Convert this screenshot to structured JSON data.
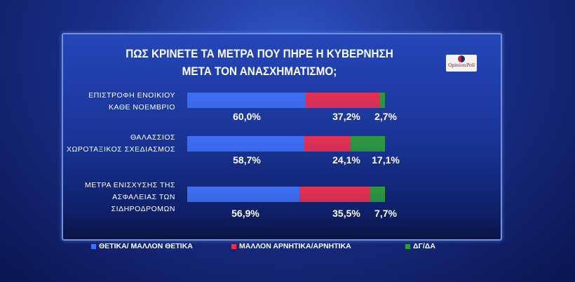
{
  "chart_data": {
    "type": "bar",
    "stacked": true,
    "orientation": "horizontal",
    "title": "ΠΩΣ ΚΡΙΝΕΤΕ ΤΑ ΜΕΤΡΑ ΠΟΥ ΠΗΡΕ Η ΚΥΒΕΡΝΗΣΗ ΜΕΤΑ ΤΟΝ ΑΝΑΣΧΗΜΑΤΙΣΜΟ;",
    "title_lines": [
      "ΠΩΣ ΚΡΙΝΕΤΕ ΤΑ ΜΕΤΡΑ ΠΟΥ ΠΗΡΕ Η ΚΥΒΕΡΝΗΣΗ",
      "ΜΕΤΑ ΤΟΝ ΑΝΑΣΧΗΜΑΤΙΣΜΟ;"
    ],
    "categories": [
      [
        "ΕΠΙΣΤΡΟΦΗ ΕΝΟΙΚΙΟΥ",
        "ΚΑΘΕ ΝΟΕΜΒΡΙΟ"
      ],
      [
        "ΘΑΛΑΣΣΙΟΣ",
        "ΧΩΡΟΤΑΞΙΚΟΣ ΣΧΕΔΙΑΣΜΟΣ"
      ],
      [
        "ΜΕΤΡΑ ΕΝΙΣΧΥΣΗΣ ΤΗΣ",
        "ΑΣΦΑΛΕΙΑΣ ΤΩΝ",
        "ΣΙΔΗΡΟΔΡΟΜΩΝ"
      ]
    ],
    "series": [
      {
        "name": "ΘΕΤΙΚΑ/ ΜΑΛΛΟΝ ΘΕΤΙΚΑ",
        "color": "#3f6ff5",
        "values": [
          60.0,
          58.7,
          56.9
        ],
        "labels": [
          "60,0%",
          "58,7%",
          "56,9%"
        ]
      },
      {
        "name": "ΜΑΛΛΟΝ ΑΡΝΗΤΙΚΑ/ΑΡΝΗΤΙΚΑ",
        "color": "#e83050",
        "values": [
          37.2,
          24.1,
          35.5
        ],
        "labels": [
          "37,2%",
          "24,1%",
          "35,5%"
        ]
      },
      {
        "name": "ΔΓ/ΔΑ",
        "color": "#2e9a3e",
        "values": [
          2.7,
          17.1,
          7.7
        ],
        "labels": [
          "2,7%",
          "17,1%",
          "7,7%"
        ]
      }
    ],
    "xlim": [
      0,
      100
    ],
    "legend": "bottom"
  },
  "logo_text": "OpinionPoll"
}
